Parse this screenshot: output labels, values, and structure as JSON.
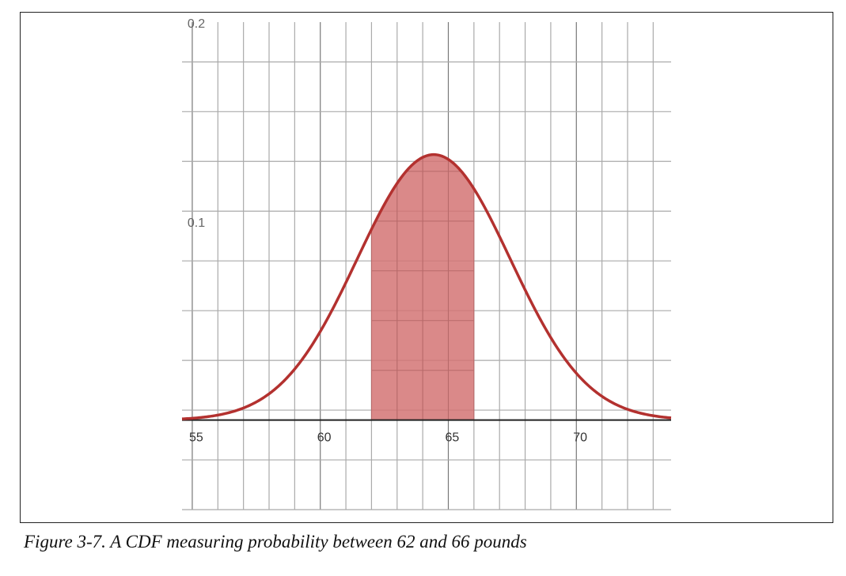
{
  "caption": "Figure 3-7. A CDF measuring probability between 62 and 66 pounds",
  "chart_data": {
    "type": "area",
    "title": "",
    "xlabel": "",
    "ylabel": "",
    "xlim": [
      54.6,
      73.7
    ],
    "ylim": [
      -0.045,
      0.2
    ],
    "x_ticks": [
      55,
      60,
      65,
      70
    ],
    "y_ticks": [
      0.1,
      0.2
    ],
    "x_tick_labels": [
      "55",
      "60",
      "65",
      "70"
    ],
    "y_tick_labels": [
      "0.1",
      "0.2"
    ],
    "grid": true,
    "x_grid_step": 1,
    "y_grid_step": 0.025,
    "series": [
      {
        "distribution": "normal",
        "mean": 64.43,
        "std_dev": 2.99,
        "color": "#b3312f"
      }
    ],
    "shaded_region": {
      "x_start": 62,
      "x_end": 66,
      "color": "#d47474",
      "opacity": 0.85
    }
  }
}
